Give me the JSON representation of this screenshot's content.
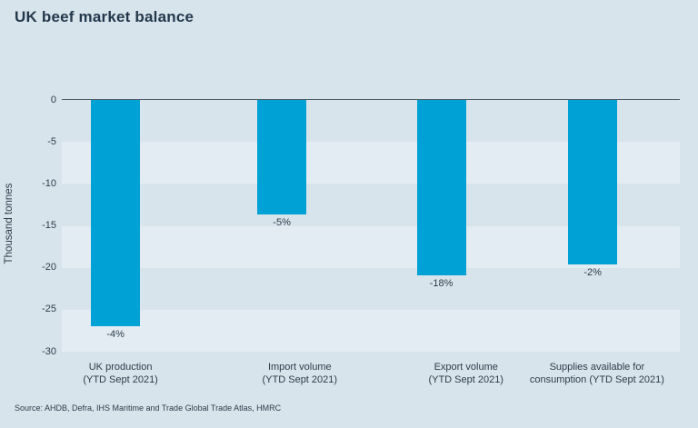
{
  "chart_data": {
    "type": "bar",
    "title": "UK beef market balance",
    "ylabel": "Thousand tonnes",
    "ylim": [
      -30,
      0
    ],
    "ytick_interval": 5,
    "yticks": [
      "0",
      "-5",
      "-10",
      "-15",
      "-20",
      "-25",
      "-30"
    ],
    "categories": [
      {
        "line1": "UK production",
        "line2": "(YTD Sept 2021)"
      },
      {
        "line1": "Import volume",
        "line2": "(YTD Sept 2021)"
      },
      {
        "line1": "Export volume",
        "line2": "(YTD Sept 2021)"
      },
      {
        "line1": "Supplies available for",
        "line2": "consumption (YTD Sept 2021)"
      }
    ],
    "values": [
      -27,
      -13.7,
      -20.9,
      -19.6
    ],
    "data_labels": [
      "-4%",
      "-5%",
      "-18%",
      "-2%"
    ],
    "grid": "horizontal-bands",
    "legend": "none",
    "source": "Source: AHDB, Defra, IHS Maritime and Trade Global Trade Atlas, HMRC",
    "colors": {
      "bar": "#00a1d4",
      "background": "#d8e4ec",
      "band_light": "#e3ecf3",
      "axis_line": "#525f6a",
      "title_text": "#24384c",
      "body_text": "#2c3c49"
    }
  }
}
